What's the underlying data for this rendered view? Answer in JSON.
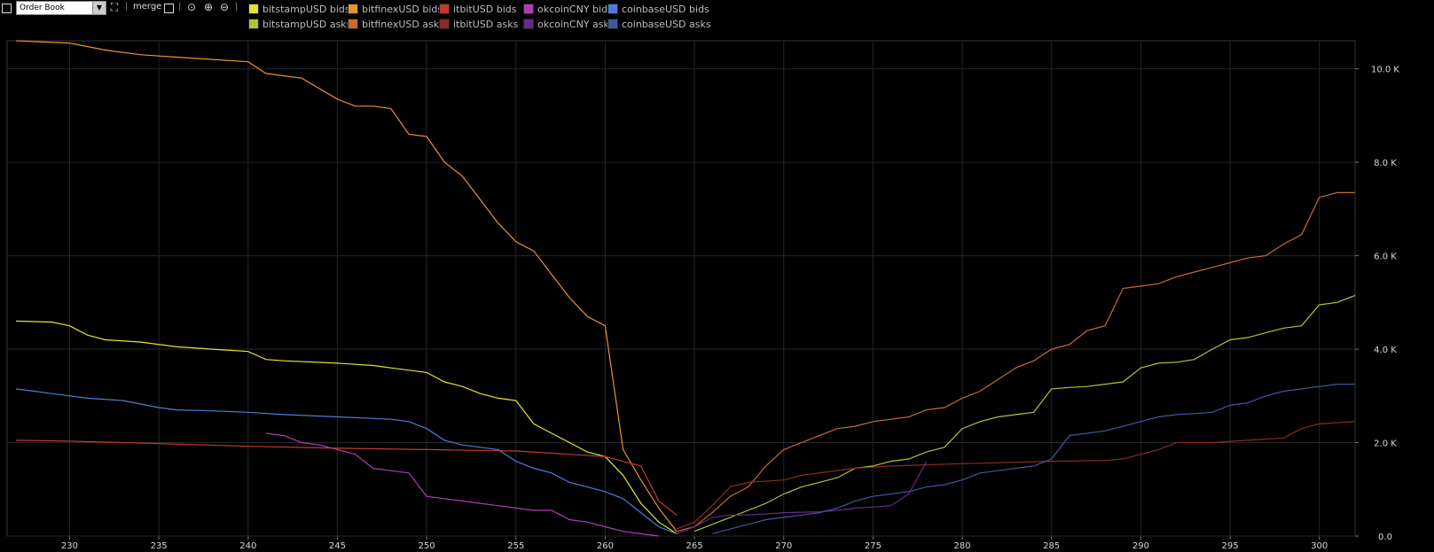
{
  "toolbar": {
    "view_select": "Order Book",
    "merge_label": "merge",
    "separator": "|"
  },
  "colors": {
    "bitstampUSD bids": "#e4e232",
    "bitstampUSD asks": "#a8c832",
    "bitfinexUSD bids": "#e8932a",
    "bitfinexUSD asks": "#c86a32",
    "itbitUSD bids": "#c23a2a",
    "itbitUSD asks": "#8a2a22",
    "okcoinCNY bids": "#b23cb4",
    "okcoinCNY asks": "#6a2a8c",
    "coinbaseUSD bids": "#4a7ed6",
    "coinbaseUSD asks": "#3a5a9c"
  },
  "chart_data": {
    "type": "line",
    "xlabel": "",
    "ylabel": "",
    "xlim": [
      226.5,
      302
    ],
    "ylim": [
      0,
      10.6
    ],
    "x_ticks": [
      "230",
      "235",
      "240",
      "245",
      "250",
      "255",
      "260",
      "265",
      "270",
      "275",
      "280",
      "285",
      "290",
      "295",
      "300"
    ],
    "y_ticks": [
      "0.0",
      "2.0 K",
      "4.0 K",
      "6.0 K",
      "8.0 K",
      "10.0 K"
    ],
    "grid": true,
    "legend_position": "top",
    "series": [
      {
        "name": "bitstampUSD bids",
        "x": [
          227,
          229,
          230,
          231,
          232,
          234,
          236,
          238,
          240,
          241,
          242,
          245,
          247,
          248,
          249,
          250,
          251,
          252,
          253,
          254,
          255,
          256,
          257,
          258,
          259,
          260,
          261,
          262,
          263,
          264
        ],
        "y": [
          4.6,
          4.58,
          4.5,
          4.3,
          4.2,
          4.15,
          4.05,
          4.0,
          3.95,
          3.78,
          3.75,
          3.7,
          3.65,
          3.6,
          3.55,
          3.5,
          3.3,
          3.2,
          3.05,
          2.95,
          2.9,
          2.4,
          2.2,
          2.0,
          1.8,
          1.7,
          1.3,
          0.7,
          0.3,
          0.05
        ]
      },
      {
        "name": "bitstampUSD asks",
        "x": [
          265,
          266,
          267,
          268,
          269,
          270,
          271,
          272,
          273,
          274,
          275,
          276,
          277,
          278,
          279,
          280,
          281,
          282,
          283,
          284,
          285,
          286,
          287,
          288,
          289,
          290,
          291,
          292,
          293,
          294,
          295,
          296,
          297,
          298,
          299,
          300,
          301,
          302
        ],
        "y": [
          0.1,
          0.25,
          0.4,
          0.55,
          0.7,
          0.9,
          1.05,
          1.15,
          1.25,
          1.45,
          1.5,
          1.6,
          1.65,
          1.8,
          1.9,
          2.3,
          2.45,
          2.55,
          2.6,
          2.65,
          3.15,
          3.18,
          3.2,
          3.25,
          3.3,
          3.6,
          3.7,
          3.72,
          3.78,
          4.0,
          4.2,
          4.25,
          4.35,
          4.45,
          4.5,
          4.95,
          5.0,
          5.15
        ]
      },
      {
        "name": "bitfinexUSD bids",
        "x": [
          227,
          230,
          232,
          234,
          236,
          238,
          240,
          241,
          242,
          243,
          245,
          246,
          247,
          248,
          249,
          250,
          251,
          252,
          253,
          254,
          255,
          256,
          257,
          258,
          259,
          260,
          261,
          262,
          263,
          264
        ],
        "y": [
          10.6,
          10.55,
          10.4,
          10.3,
          10.25,
          10.2,
          10.15,
          9.9,
          9.85,
          9.8,
          9.35,
          9.2,
          9.2,
          9.15,
          8.6,
          8.55,
          8.0,
          7.7,
          7.2,
          6.7,
          6.3,
          6.1,
          5.6,
          5.1,
          4.7,
          4.5,
          1.85,
          1.2,
          0.6,
          0.1
        ]
      },
      {
        "name": "bitfinexUSD asks",
        "x": [
          264,
          265,
          266,
          267,
          268,
          269,
          270,
          271,
          272,
          273,
          274,
          275,
          276,
          277,
          278,
          279,
          280,
          281,
          282,
          283,
          284,
          285,
          286,
          287,
          288,
          289,
          290,
          291,
          292,
          293,
          294,
          295,
          296,
          297,
          298,
          299,
          300,
          301,
          302
        ],
        "y": [
          0.1,
          0.2,
          0.5,
          0.85,
          1.05,
          1.5,
          1.85,
          2.0,
          2.15,
          2.3,
          2.35,
          2.45,
          2.5,
          2.55,
          2.7,
          2.75,
          2.95,
          3.1,
          3.35,
          3.6,
          3.75,
          4.0,
          4.1,
          4.4,
          4.5,
          5.3,
          5.35,
          5.4,
          5.55,
          5.65,
          5.75,
          5.85,
          5.95,
          6.0,
          6.25,
          6.45,
          7.25,
          7.35,
          7.35
        ]
      },
      {
        "name": "itbitUSD bids",
        "x": [
          227,
          230,
          235,
          240,
          245,
          250,
          255,
          260,
          262,
          263,
          264
        ],
        "y": [
          2.05,
          2.03,
          1.98,
          1.92,
          1.88,
          1.85,
          1.82,
          1.7,
          1.5,
          0.75,
          0.45
        ]
      },
      {
        "name": "itbitUSD asks",
        "x": [
          264,
          265,
          266,
          267,
          268,
          270,
          271,
          274,
          276,
          280,
          285,
          288,
          289,
          290,
          291,
          292,
          293,
          294,
          296,
          298,
          299,
          300,
          302
        ],
        "y": [
          0.15,
          0.3,
          0.65,
          1.05,
          1.15,
          1.2,
          1.3,
          1.45,
          1.5,
          1.55,
          1.6,
          1.62,
          1.65,
          1.75,
          1.85,
          2.0,
          2.0,
          2.0,
          2.05,
          2.1,
          2.3,
          2.4,
          2.45
        ]
      },
      {
        "name": "okcoinCNY bids",
        "x": [
          241,
          242,
          243,
          244,
          245,
          246,
          247,
          248,
          249,
          250,
          251,
          252,
          253,
          254,
          255,
          256,
          257,
          258,
          259,
          260,
          261,
          262,
          263
        ],
        "y": [
          2.2,
          2.15,
          2.0,
          1.95,
          1.85,
          1.75,
          1.45,
          1.4,
          1.35,
          0.85,
          0.8,
          0.75,
          0.7,
          0.65,
          0.6,
          0.55,
          0.55,
          0.35,
          0.3,
          0.2,
          0.1,
          0.05,
          0.0
        ]
      },
      {
        "name": "okcoinCNY asks",
        "x": [
          264,
          265,
          266,
          267,
          268,
          270,
          272,
          273,
          274,
          275,
          276,
          277,
          278
        ],
        "y": [
          0.05,
          0.2,
          0.4,
          0.45,
          0.45,
          0.5,
          0.52,
          0.55,
          0.6,
          0.62,
          0.65,
          0.9,
          1.6
        ]
      },
      {
        "name": "coinbaseUSD bids",
        "x": [
          227,
          228,
          229,
          230,
          231,
          233,
          235,
          236,
          238,
          240,
          242,
          245,
          248,
          249,
          250,
          251,
          252,
          253,
          254,
          255,
          256,
          257,
          258,
          259,
          260,
          261,
          262,
          263,
          264
        ],
        "y": [
          3.15,
          3.1,
          3.05,
          3.0,
          2.95,
          2.9,
          2.75,
          2.7,
          2.68,
          2.65,
          2.6,
          2.55,
          2.5,
          2.45,
          2.3,
          2.05,
          1.95,
          1.9,
          1.85,
          1.6,
          1.45,
          1.35,
          1.15,
          1.05,
          0.95,
          0.8,
          0.5,
          0.2,
          0.05
        ]
      },
      {
        "name": "coinbaseUSD asks",
        "x": [
          266,
          267,
          268,
          269,
          270,
          271,
          272,
          273,
          274,
          275,
          276,
          277,
          278,
          279,
          280,
          281,
          282,
          283,
          284,
          285,
          286,
          287,
          288,
          289,
          290,
          291,
          292,
          293,
          294,
          295,
          296,
          297,
          298,
          299,
          300,
          301,
          302
        ],
        "y": [
          0.05,
          0.15,
          0.25,
          0.35,
          0.4,
          0.45,
          0.5,
          0.6,
          0.75,
          0.85,
          0.9,
          0.95,
          1.05,
          1.1,
          1.2,
          1.35,
          1.4,
          1.45,
          1.5,
          1.65,
          2.15,
          2.2,
          2.25,
          2.35,
          2.45,
          2.55,
          2.6,
          2.62,
          2.65,
          2.8,
          2.85,
          3.0,
          3.1,
          3.15,
          3.2,
          3.25,
          3.25
        ]
      }
    ]
  }
}
